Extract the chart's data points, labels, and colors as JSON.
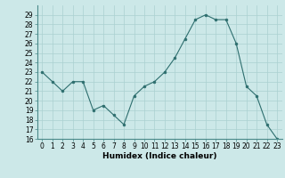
{
  "x": [
    0,
    1,
    2,
    3,
    4,
    5,
    6,
    7,
    8,
    9,
    10,
    11,
    12,
    13,
    14,
    15,
    16,
    17,
    18,
    19,
    20,
    21,
    22,
    23
  ],
  "y": [
    23,
    22,
    21,
    22,
    22,
    19,
    19.5,
    18.5,
    17.5,
    20.5,
    21.5,
    22,
    23,
    24.5,
    26.5,
    28.5,
    29,
    28.5,
    28.5,
    26,
    21.5,
    20.5,
    17.5,
    16
  ],
  "line_color": "#2d6e6e",
  "marker": "o",
  "marker_size": 2,
  "bg_color": "#cce8e8",
  "grid_color": "#aad0d0",
  "xlabel": "Humidex (Indice chaleur)",
  "ylim": [
    16,
    30
  ],
  "xlim": [
    -0.5,
    23.5
  ],
  "yticks": [
    16,
    17,
    18,
    19,
    20,
    21,
    22,
    23,
    24,
    25,
    26,
    27,
    28,
    29
  ],
  "xticks": [
    0,
    1,
    2,
    3,
    4,
    5,
    6,
    7,
    8,
    9,
    10,
    11,
    12,
    13,
    14,
    15,
    16,
    17,
    18,
    19,
    20,
    21,
    22,
    23
  ],
  "tick_fontsize": 5.5,
  "label_fontsize": 6.5
}
